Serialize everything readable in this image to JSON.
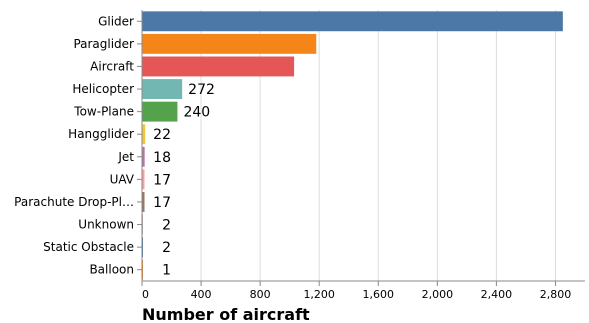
{
  "chart_data": {
    "type": "bar",
    "orientation": "horizontal",
    "categories": [
      "Glider",
      "Paraglider",
      "Aircraft",
      "Helicopter",
      "Tow-Plane",
      "Hangglider",
      "Jet",
      "UAV",
      "Parachute Drop-Pl…",
      "Unknown",
      "Static Obstacle",
      "Balloon"
    ],
    "values": [
      2850,
      1180,
      1030,
      272,
      240,
      22,
      18,
      17,
      17,
      2,
      2,
      1
    ],
    "data_labels": [
      "",
      "",
      "",
      "272",
      "240",
      "22",
      "18",
      "17",
      "17",
      "2",
      "2",
      "1"
    ],
    "colors": [
      "#4c78a8",
      "#f58518",
      "#e45756",
      "#72b7b2",
      "#54a24b",
      "#eeca3b",
      "#b279a2",
      "#ff9da6",
      "#9d755d",
      "#bab0ac",
      "#4c78a8",
      "#f58518"
    ],
    "xlabel": "Number of aircraft",
    "ylabel": "",
    "xlim": [
      0,
      3000
    ],
    "xticks": [
      0,
      400,
      800,
      1200,
      1600,
      2000,
      2400,
      2800
    ],
    "xtick_labels": [
      "0",
      "400",
      "800",
      "1,200",
      "1,600",
      "2,000",
      "2,400",
      "2,800"
    ],
    "grid": true,
    "legend": "none"
  }
}
